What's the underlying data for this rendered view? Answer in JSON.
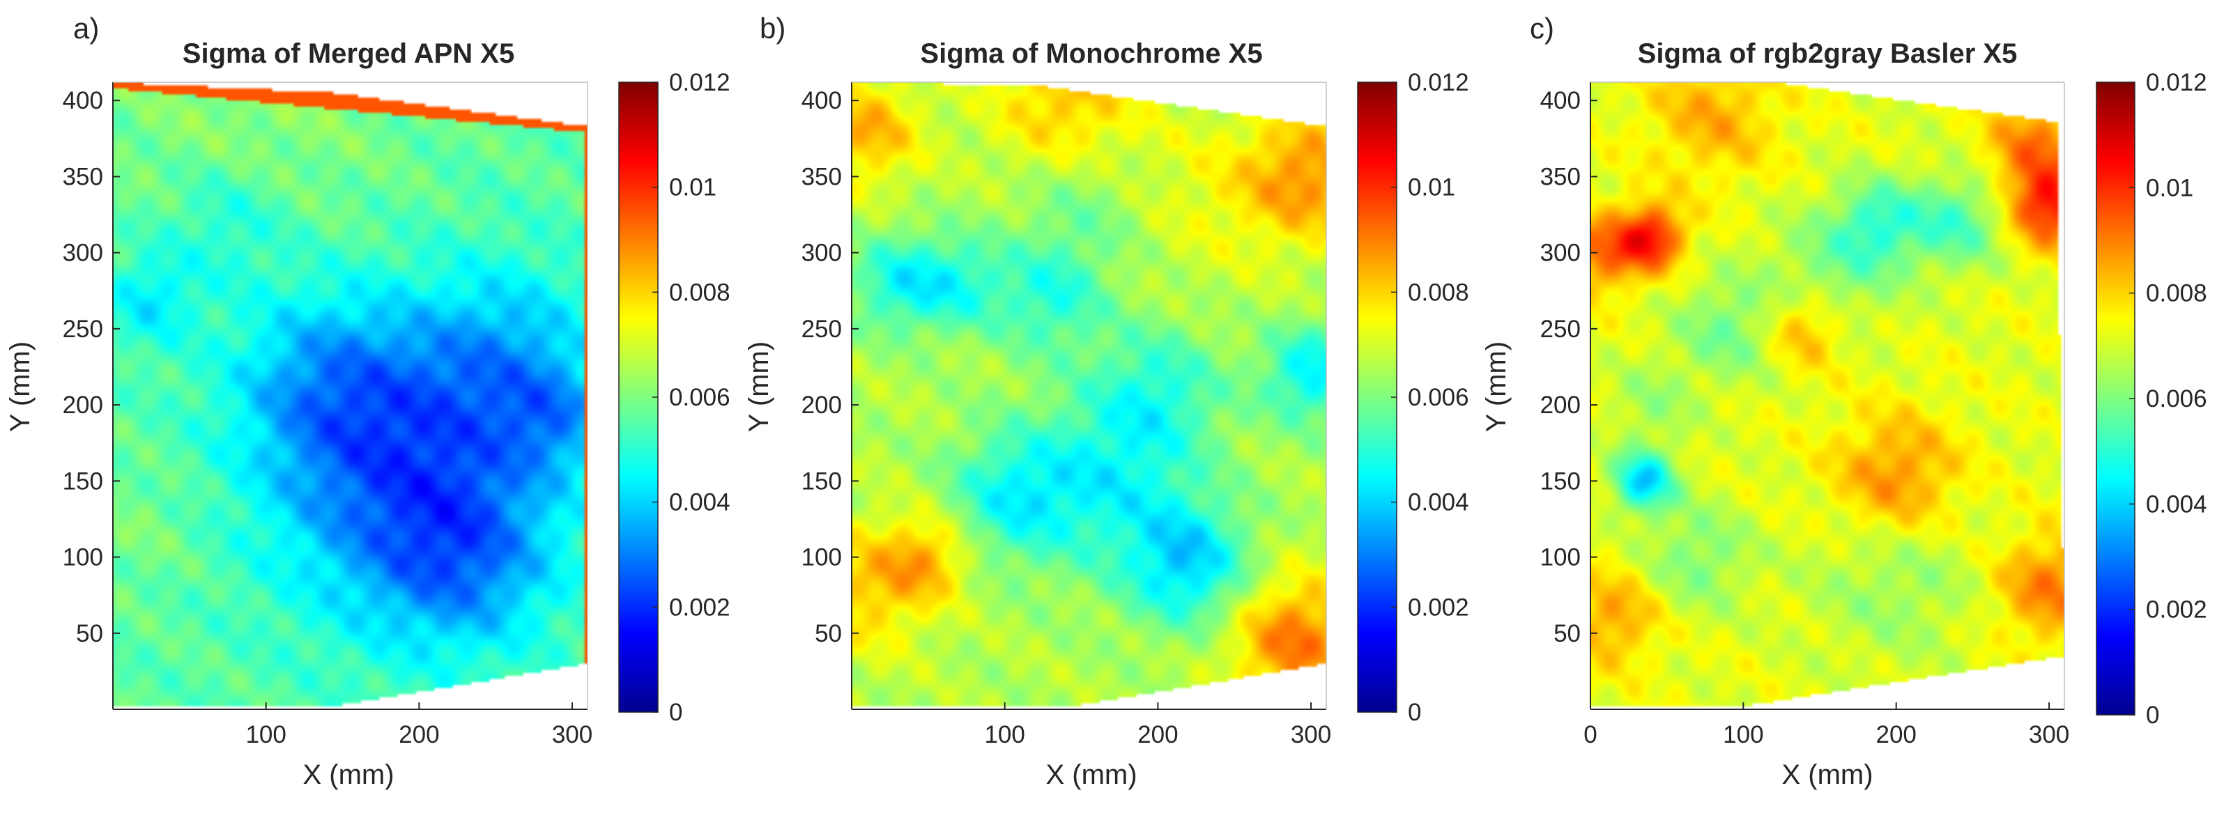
{
  "chart_data": [
    {
      "type": "heatmap",
      "panel_label": "a)",
      "title": "Sigma of Merged APN X5",
      "xlabel": "X (mm)",
      "ylabel": "Y (mm)",
      "xlim": [
        0,
        310
      ],
      "ylim": [
        0,
        412
      ],
      "xticks": [
        100,
        200,
        300
      ],
      "yticks": [
        50,
        100,
        150,
        200,
        250,
        300,
        350,
        400
      ],
      "boundary": [
        [
          0,
          412
        ],
        [
          145,
          405
        ],
        [
          310,
          383
        ],
        [
          310,
          30
        ],
        [
          145,
          2
        ],
        [
          0,
          2
        ]
      ],
      "base_value": 0.0056,
      "value_range": "0.0025 - 0.008",
      "blobs": [
        {
          "x": 195,
          "y": 145,
          "sigma": 65,
          "amp": -0.0028
        },
        {
          "x": 140,
          "y": 215,
          "sigma": 45,
          "amp": -0.0018
        },
        {
          "x": 255,
          "y": 230,
          "sigma": 45,
          "amp": -0.0017
        },
        {
          "x": 230,
          "y": 95,
          "sigma": 40,
          "amp": -0.0014
        },
        {
          "x": 25,
          "y": 270,
          "sigma": 22,
          "amp": -0.0013
        },
        {
          "x": 75,
          "y": 320,
          "sigma": 28,
          "amp": -0.0009
        },
        {
          "x": 290,
          "y": 190,
          "sigma": 25,
          "amp": -0.0012
        },
        {
          "x": 90,
          "y": 400,
          "sigma": 70,
          "amp": 0.0006
        },
        {
          "x": 20,
          "y": 120,
          "sigma": 30,
          "amp": 0.0004
        }
      ],
      "edge_highlight": {
        "side": "top-and-right",
        "value": 0.0095
      },
      "colorbar": {
        "colormap": "jet",
        "limits": [
          0,
          0.012
        ],
        "ticks": [
          0,
          0.002,
          0.004,
          0.006,
          0.008,
          0.01,
          0.012
        ],
        "tick_labels": [
          "0",
          "0.002",
          "0.004",
          "0.006",
          "0.008",
          "0.01",
          "0.012"
        ]
      }
    },
    {
      "type": "heatmap",
      "panel_label": "b)",
      "title": "Sigma of Monochrome X5",
      "xlabel": "X (mm)",
      "ylabel": "Y (mm)",
      "xlim": [
        0,
        310
      ],
      "ylim": [
        0,
        412
      ],
      "xticks": [
        100,
        200,
        300
      ],
      "yticks": [
        50,
        100,
        150,
        200,
        250,
        300,
        350,
        400
      ],
      "boundary": [
        [
          0,
          412
        ],
        [
          120,
          410
        ],
        [
          310,
          383
        ],
        [
          310,
          30
        ],
        [
          145,
          2
        ],
        [
          0,
          2
        ]
      ],
      "base_value": 0.0066,
      "value_range": "0.0035 - 0.009",
      "blobs": [
        {
          "x": 220,
          "y": 95,
          "sigma": 28,
          "amp": -0.0025
        },
        {
          "x": 105,
          "y": 140,
          "sigma": 30,
          "amp": -0.0018
        },
        {
          "x": 170,
          "y": 150,
          "sigma": 40,
          "amp": -0.0018
        },
        {
          "x": 30,
          "y": 280,
          "sigma": 22,
          "amp": -0.0018
        },
        {
          "x": 70,
          "y": 280,
          "sigma": 22,
          "amp": -0.0016
        },
        {
          "x": 130,
          "y": 270,
          "sigma": 25,
          "amp": -0.0016
        },
        {
          "x": 200,
          "y": 210,
          "sigma": 30,
          "amp": -0.0015
        },
        {
          "x": 300,
          "y": 220,
          "sigma": 22,
          "amp": -0.0022
        },
        {
          "x": 150,
          "y": 330,
          "sigma": 30,
          "amp": -0.0008
        },
        {
          "x": 290,
          "y": 45,
          "sigma": 30,
          "amp": 0.0025
        },
        {
          "x": 300,
          "y": 350,
          "sigma": 30,
          "amp": 0.002
        },
        {
          "x": 10,
          "y": 80,
          "sigma": 30,
          "amp": 0.0015
        },
        {
          "x": 10,
          "y": 380,
          "sigma": 25,
          "amp": 0.0018
        },
        {
          "x": 140,
          "y": 400,
          "sigma": 35,
          "amp": 0.0016
        },
        {
          "x": 50,
          "y": 100,
          "sigma": 20,
          "amp": 0.0016
        },
        {
          "x": 240,
          "y": 340,
          "sigma": 40,
          "amp": 0.0007
        }
      ],
      "edge_highlight": null,
      "colorbar": {
        "colormap": "jet",
        "limits": [
          0,
          0.012
        ],
        "ticks": [
          0,
          0.002,
          0.004,
          0.006,
          0.008,
          0.01,
          0.012
        ],
        "tick_labels": [
          "0",
          "0.002",
          "0.004",
          "0.006",
          "0.008",
          "0.01",
          "0.012"
        ]
      }
    },
    {
      "type": "heatmap",
      "panel_label": "c)",
      "title": "Sigma of rgb2gray Basler X5",
      "xlabel": "X (mm)",
      "ylabel": "Y (mm)",
      "xlim": [
        0,
        310
      ],
      "ylim": [
        0,
        412
      ],
      "xticks": [
        0,
        100,
        200,
        300
      ],
      "yticks": [
        50,
        100,
        150,
        200,
        250,
        300,
        350,
        400
      ],
      "boundary": [
        [
          0,
          412
        ],
        [
          120,
          412
        ],
        [
          305,
          386
        ],
        [
          310,
          35
        ],
        [
          100,
          2
        ],
        [
          0,
          2
        ]
      ],
      "base_value": 0.0072,
      "value_range": "0.004 - 0.0105",
      "blobs": [
        {
          "x": 35,
          "y": 150,
          "sigma": 14,
          "amp": -0.0032
        },
        {
          "x": 190,
          "y": 320,
          "sigma": 20,
          "amp": -0.0018
        },
        {
          "x": 240,
          "y": 320,
          "sigma": 22,
          "amp": -0.0018
        },
        {
          "x": 90,
          "y": 250,
          "sigma": 25,
          "amp": -0.0013
        },
        {
          "x": 160,
          "y": 290,
          "sigma": 30,
          "amp": -0.0012
        },
        {
          "x": 70,
          "y": 100,
          "sigma": 25,
          "amp": -0.0012
        },
        {
          "x": 200,
          "y": 90,
          "sigma": 40,
          "amp": -0.001
        },
        {
          "x": 40,
          "y": 200,
          "sigma": 20,
          "amp": -0.0008
        },
        {
          "x": 40,
          "y": 310,
          "sigma": 15,
          "amp": 0.003
        },
        {
          "x": 8,
          "y": 300,
          "sigma": 18,
          "amp": 0.002
        },
        {
          "x": 300,
          "y": 330,
          "sigma": 18,
          "amp": 0.003
        },
        {
          "x": 290,
          "y": 370,
          "sigma": 22,
          "amp": 0.0018
        },
        {
          "x": 200,
          "y": 150,
          "sigma": 30,
          "amp": 0.0018
        },
        {
          "x": 300,
          "y": 80,
          "sigma": 25,
          "amp": 0.0018
        },
        {
          "x": 15,
          "y": 60,
          "sigma": 22,
          "amp": 0.0014
        },
        {
          "x": 140,
          "y": 250,
          "sigma": 18,
          "amp": 0.0015
        },
        {
          "x": 80,
          "y": 390,
          "sigma": 30,
          "amp": 0.0012
        }
      ],
      "edge_highlight": null,
      "colorbar": {
        "colormap": "jet",
        "limits": [
          0,
          0.012
        ],
        "ticks": [
          0,
          0.002,
          0.004,
          0.006,
          0.008,
          0.01,
          0.012
        ],
        "tick_labels": [
          "0",
          "0.002",
          "0.004",
          "0.006",
          "0.008",
          "0.01",
          "0.012"
        ]
      }
    }
  ]
}
